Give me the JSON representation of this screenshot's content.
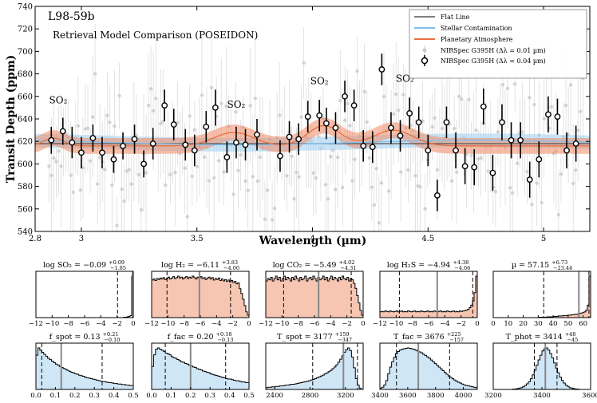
{
  "chart_data": [
    {
      "type": "scatter",
      "title": "L98-59b",
      "subtitle": "Retrieval Model Comparison (POSEIDON)",
      "xlabel": "Wavelength (µm)",
      "ylabel": "Transit Depth (ppm)",
      "xlim": [
        2.8,
        5.2
      ],
      "ylim": [
        540,
        740
      ],
      "xticks": [
        2.8,
        3,
        3.5,
        4,
        4.5,
        5
      ],
      "xtick_labels": [
        "2.8",
        "3",
        "3.5",
        "4",
        "4.5",
        "5"
      ],
      "yticks": [
        540,
        560,
        580,
        600,
        620,
        640,
        660,
        680,
        700,
        720,
        740
      ],
      "legend_position": "top-right",
      "legend": [
        {
          "label": "Flat Line",
          "color": "#555555"
        },
        {
          "label": "Stellar Contamination",
          "color": "#7fbfee"
        },
        {
          "label": "Planetary Atmosphere",
          "color": "#e8703f"
        },
        {
          "label": "NIRSpec G395H (Δλ = 0.01 µm)",
          "color": "#c8c8c8"
        },
        {
          "label": "NIRSpec G395H (Δλ = 0.04 µm)",
          "color": "#000000"
        }
      ],
      "annotations": [
        {
          "text": "SO₂",
          "x": 2.9,
          "y": 654
        },
        {
          "text": "SO₂",
          "x": 3.67,
          "y": 650
        },
        {
          "text": "SO₂",
          "x": 4.03,
          "y": 671
        },
        {
          "text": "SO₂",
          "x": 4.4,
          "y": 673
        }
      ],
      "flat_line": 618,
      "series": [
        {
          "name": "NIRSpec G395H (Δλ = 0.04 µm)",
          "x": [
            2.87,
            2.92,
            2.96,
            3.0,
            3.05,
            3.09,
            3.14,
            3.18,
            3.23,
            3.27,
            3.31,
            3.36,
            3.4,
            3.45,
            3.49,
            3.54,
            3.58,
            3.63,
            3.67,
            3.71,
            3.76,
            3.86,
            3.9,
            3.94,
            3.98,
            4.03,
            4.06,
            4.1,
            4.14,
            4.18,
            4.22,
            4.26,
            4.3,
            4.34,
            4.38,
            4.42,
            4.46,
            4.5,
            4.54,
            4.58,
            4.62,
            4.66,
            4.7,
            4.74,
            4.78,
            4.82,
            4.86,
            4.9,
            4.94,
            4.98,
            5.02,
            5.06,
            5.1,
            5.14
          ],
          "y": [
            621,
            629,
            619,
            610,
            623,
            610,
            604,
            616,
            622,
            600,
            618,
            652,
            635,
            617,
            612,
            633,
            650,
            606,
            619,
            617,
            626,
            607,
            624,
            622,
            642,
            643,
            636,
            632,
            660,
            652,
            616,
            615,
            684,
            632,
            625,
            645,
            637,
            612,
            572,
            637,
            612,
            598,
            597,
            651,
            592,
            637,
            621,
            621,
            586,
            604,
            644,
            642,
            612,
            618
          ],
          "yerr": [
            12,
            12,
            14,
            14,
            12,
            14,
            12,
            12,
            13,
            12,
            14,
            14,
            14,
            14,
            14,
            14,
            16,
            14,
            14,
            14,
            14,
            14,
            14,
            14,
            14,
            14,
            14,
            14,
            14,
            14,
            14,
            14,
            14,
            14,
            14,
            14,
            14,
            14,
            14,
            14,
            16,
            16,
            16,
            16,
            16,
            16,
            16,
            16,
            16,
            16,
            16,
            16,
            16,
            16
          ]
        }
      ]
    },
    {
      "type": "histogram",
      "title": "log SO₂ = −0.09 +0.09 −1.85",
      "xlim": [
        -12,
        0
      ],
      "xticks": [
        -12,
        -10,
        -8,
        -6,
        -4,
        -2,
        0
      ],
      "xtick_labels": [
        "−12",
        "−10",
        "−8",
        "−6",
        "−4",
        "−2",
        "0"
      ],
      "median": -0.09,
      "lower": -1.94,
      "upper": 0.0,
      "fill": "#ffffff",
      "values": [
        0,
        0,
        0,
        0,
        0,
        0,
        0,
        0,
        0,
        0,
        0,
        0,
        0,
        0,
        0,
        0,
        0,
        0,
        0,
        0,
        0,
        0,
        0,
        0,
        0,
        0,
        0,
        0,
        0,
        0,
        0,
        0,
        0,
        0,
        0,
        0,
        0,
        0,
        0,
        0,
        0,
        0,
        0,
        0,
        0,
        0,
        0,
        0,
        0,
        0,
        0,
        0,
        0,
        0,
        1,
        1,
        2,
        3,
        5,
        100
      ]
    },
    {
      "type": "histogram",
      "title": "log H₂ = −6.11 +3.83 −4.00",
      "xlim": [
        -12,
        0
      ],
      "xticks": [
        -12,
        -10,
        -8,
        -6,
        -4,
        -2,
        0
      ],
      "xtick_labels": [
        "−12",
        "−10",
        "−8",
        "−6",
        "−4",
        "−2",
        "0"
      ],
      "median": -6.11,
      "lower": -10.11,
      "upper": -2.28,
      "fill": "#f7c6b3",
      "values": [
        78,
        80,
        77,
        81,
        79,
        82,
        80,
        83,
        79,
        81,
        84,
        80,
        82,
        85,
        81,
        83,
        86,
        82,
        84,
        80,
        83,
        85,
        81,
        84,
        82,
        86,
        83,
        80,
        84,
        82,
        85,
        81,
        83,
        79,
        82,
        84,
        80,
        83,
        78,
        81,
        79,
        82,
        77,
        80,
        76,
        79,
        75,
        78,
        74,
        77,
        73,
        75,
        70,
        72,
        60,
        50,
        38,
        25,
        12,
        5
      ]
    },
    {
      "type": "histogram",
      "title": "log CO₂ = −5.49 +4.02 −4.31",
      "xlim": [
        -12,
        0
      ],
      "xticks": [
        -12,
        -10,
        -8,
        -6,
        -4,
        -2,
        0
      ],
      "xtick_labels": [
        "−12",
        "−10",
        "−8",
        "−6",
        "−4",
        "−2",
        "0"
      ],
      "median": -5.49,
      "lower": -9.8,
      "upper": -1.47,
      "fill": "#f7c6b3",
      "values": [
        30,
        32,
        31,
        33,
        30,
        32,
        34,
        31,
        33,
        30,
        32,
        34,
        31,
        33,
        32,
        30,
        33,
        31,
        34,
        32,
        30,
        33,
        31,
        32,
        34,
        30,
        32,
        33,
        31,
        34,
        32,
        30,
        33,
        31,
        32,
        34,
        31,
        33,
        30,
        32,
        34,
        31,
        33,
        32,
        30,
        33,
        31,
        34,
        32,
        31,
        33,
        30,
        32,
        31,
        28,
        24,
        18,
        12,
        6,
        2
      ]
    },
    {
      "type": "histogram",
      "title": "log H₂S = −4.94 +4.38 −4.66",
      "xlim": [
        -12,
        0
      ],
      "xticks": [
        -12,
        -10,
        -8,
        -6,
        -4,
        -2,
        0
      ],
      "xtick_labels": [
        "−12",
        "−10",
        "−8",
        "−6",
        "−4",
        "−2",
        "0"
      ],
      "median": -4.94,
      "lower": -9.6,
      "upper": -0.56,
      "fill": "#f7c6b3",
      "values": [
        14,
        15,
        14,
        16,
        15,
        14,
        16,
        15,
        14,
        15,
        16,
        14,
        15,
        16,
        14,
        15,
        14,
        16,
        15,
        14,
        15,
        16,
        14,
        15,
        14,
        16,
        15,
        14,
        15,
        16,
        14,
        15,
        14,
        16,
        15,
        14,
        15,
        16,
        14,
        15,
        14,
        16,
        15,
        14,
        15,
        16,
        14,
        15,
        14,
        16,
        15,
        16,
        17,
        18,
        20,
        24,
        30,
        40,
        60,
        100
      ]
    },
    {
      "type": "histogram",
      "title": "µ = 57.15 +6.73 −23.44",
      "xlim": [
        0,
        65
      ],
      "xticks": [
        0,
        10,
        20,
        30,
        40,
        50,
        60
      ],
      "xtick_labels": [
        "0",
        "10",
        "20",
        "30",
        "40",
        "50",
        "60"
      ],
      "median": 57.15,
      "lower": 33.71,
      "upper": 63.88,
      "fill": "#f7c6b3",
      "values": [
        0,
        0,
        0,
        0,
        0,
        0,
        0,
        0,
        0,
        0,
        0,
        0,
        0,
        0,
        0,
        0,
        0,
        0,
        0,
        0,
        0,
        0,
        0,
        0,
        0,
        0,
        0,
        0,
        1,
        1,
        1,
        1,
        1,
        2,
        2,
        2,
        2,
        3,
        3,
        3,
        4,
        4,
        4,
        5,
        5,
        5,
        6,
        6,
        7,
        7,
        8,
        8,
        9,
        10,
        11,
        12,
        14,
        18,
        30,
        100
      ]
    },
    {
      "type": "histogram",
      "title": "f_spot = 0.13 +0.21 −0.10",
      "xlim": [
        0,
        0.5
      ],
      "xticks": [
        0,
        0.1,
        0.2,
        0.3,
        0.4,
        0.5
      ],
      "xtick_labels": [
        "0.0",
        "0.1",
        "0.2",
        "0.3",
        "0.4",
        "0.5"
      ],
      "median": 0.13,
      "lower": 0.03,
      "upper": 0.34,
      "fill": "#cfe6f7",
      "values": [
        70,
        85,
        80,
        76,
        72,
        68,
        64,
        61,
        58,
        55,
        52,
        50,
        47,
        45,
        43,
        41,
        39,
        37,
        35,
        34,
        32,
        31,
        29,
        28,
        27,
        25,
        24,
        23,
        22,
        21,
        20,
        19,
        18,
        17,
        16,
        16,
        15,
        14,
        14,
        13,
        12,
        12,
        11,
        11,
        10,
        10,
        9,
        9,
        8,
        8
      ]
    },
    {
      "type": "histogram",
      "title": "f_fac = 0.20 +0.18 −0.13",
      "xlim": [
        0,
        0.5
      ],
      "xticks": [
        0,
        0.1,
        0.2,
        0.3,
        0.4,
        0.5
      ],
      "xtick_labels": [
        "0.0",
        "0.1",
        "0.2",
        "0.3",
        "0.4",
        "0.5"
      ],
      "median": 0.2,
      "lower": 0.07,
      "upper": 0.38,
      "fill": "#cfe6f7",
      "values": [
        40,
        60,
        70,
        72,
        70,
        68,
        66,
        63,
        62,
        60,
        57,
        55,
        54,
        52,
        50,
        48,
        47,
        45,
        44,
        42,
        41,
        39,
        38,
        36,
        35,
        34,
        32,
        31,
        30,
        29,
        27,
        26,
        25,
        24,
        23,
        22,
        21,
        20,
        19,
        18,
        18,
        17,
        16,
        15,
        15,
        14,
        13,
        13,
        12,
        12
      ]
    },
    {
      "type": "histogram",
      "title": "T_spot = 3177 +159 −347",
      "xlim": [
        2300,
        3400
      ],
      "xticks": [
        2400,
        2800,
        3200
      ],
      "xtick_labels": [
        "2400",
        "2800",
        "3200"
      ],
      "median": 3177,
      "lower": 2830,
      "upper": 3336,
      "fill": "#cfe6f7",
      "values": [
        4,
        5,
        5,
        6,
        6,
        7,
        7,
        8,
        8,
        9,
        10,
        10,
        11,
        12,
        12,
        13,
        14,
        15,
        16,
        17,
        18,
        19,
        20,
        22,
        23,
        25,
        27,
        29,
        31,
        33,
        36,
        38,
        41,
        44,
        48,
        52,
        57,
        63,
        70,
        78,
        86,
        92,
        96,
        90,
        75,
        50,
        25,
        10,
        3,
        0
      ]
    },
    {
      "type": "histogram",
      "title": "T_fac = 3676 +225 −157",
      "xlim": [
        3400,
        4100
      ],
      "xticks": [
        3400,
        3600,
        3800,
        4000
      ],
      "xtick_labels": [
        "3400",
        "3600",
        "3800",
        "4000"
      ],
      "median": 3676,
      "lower": 3519,
      "upper": 3901,
      "fill": "#cfe6f7",
      "values": [
        3,
        5,
        10,
        20,
        35,
        50,
        62,
        72,
        80,
        85,
        88,
        90,
        91,
        92,
        93,
        92,
        91,
        90,
        88,
        86,
        84,
        82,
        79,
        76,
        73,
        70,
        66,
        62,
        58,
        54,
        50,
        46,
        42,
        38,
        34,
        30,
        27,
        24,
        21,
        18,
        16,
        14,
        12,
        10,
        9,
        8,
        7,
        6,
        5,
        4
      ]
    },
    {
      "type": "histogram",
      "title": "T_phot = 3414 +48 −45",
      "xlim": [
        3200,
        3600
      ],
      "xticks": [
        3200,
        3400,
        3600
      ],
      "xtick_labels": [
        "3200",
        "3400",
        "3600"
      ],
      "median": 3414,
      "lower": 3369,
      "upper": 3462,
      "fill": "#cfe6f7",
      "values": [
        0,
        0,
        0,
        0,
        0,
        0,
        0,
        0,
        0,
        0,
        1,
        1,
        2,
        3,
        4,
        6,
        9,
        13,
        18,
        25,
        34,
        45,
        57,
        69,
        80,
        90,
        95,
        97,
        92,
        84,
        74,
        62,
        50,
        39,
        29,
        21,
        15,
        10,
        7,
        4,
        3,
        2,
        1,
        1,
        0,
        0,
        0,
        0,
        0,
        0
      ]
    }
  ]
}
